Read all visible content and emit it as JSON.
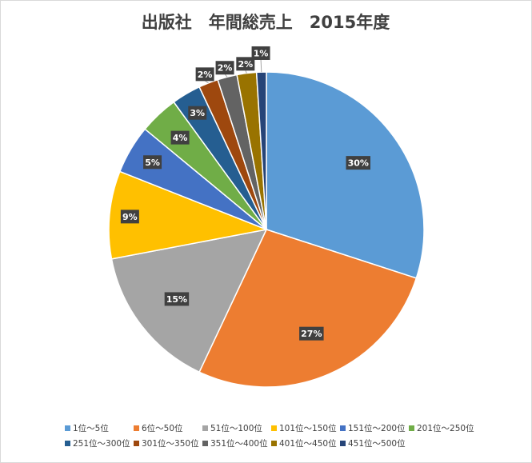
{
  "chart_data": {
    "type": "pie",
    "title": "出版社　年間総売上　2015年度",
    "start_angle_deg": 0,
    "direction": "clockwise",
    "legend_position": "bottom",
    "slices": [
      {
        "name": "1位～5位",
        "value": 30,
        "label": "30%",
        "color": "#5B9BD5"
      },
      {
        "name": "6位～50位",
        "value": 27,
        "label": "27%",
        "color": "#ED7D31"
      },
      {
        "name": "51位～100位",
        "value": 15,
        "label": "15%",
        "color": "#A5A5A5"
      },
      {
        "name": "101位～150位",
        "value": 9,
        "label": "9%",
        "color": "#FFC000"
      },
      {
        "name": "151位～200位",
        "value": 5,
        "label": "5%",
        "color": "#4472C4"
      },
      {
        "name": "201位～250位",
        "value": 4,
        "label": "4%",
        "color": "#70AD47"
      },
      {
        "name": "251位～300位",
        "value": 3,
        "label": "3%",
        "color": "#255E91"
      },
      {
        "name": "301位～350位",
        "value": 2,
        "label": "2%",
        "color": "#9E480E"
      },
      {
        "name": "351位～400位",
        "value": 2,
        "label": "2%",
        "color": "#636363"
      },
      {
        "name": "401位～450位",
        "value": 2,
        "label": "2%",
        "color": "#997300"
      },
      {
        "name": "451位～500位",
        "value": 1,
        "label": "1%",
        "color": "#264478"
      }
    ]
  }
}
